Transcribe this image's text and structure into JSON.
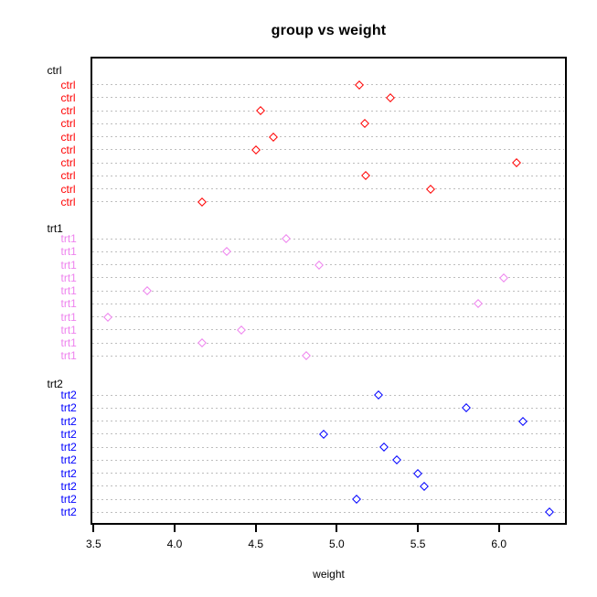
{
  "window": {
    "background": "#FFFFFF"
  },
  "chart_data": {
    "type": "scatter",
    "subtype": "dotchart",
    "title": "group vs weight",
    "xlabel": "weight",
    "ylabel": "",
    "xlim": [
      3.4812,
      6.4188
    ],
    "x_ticks": [
      {
        "value": 3.5,
        "label": "3.5"
      },
      {
        "value": 4.0,
        "label": "4.0"
      },
      {
        "value": 4.5,
        "label": "4.5"
      },
      {
        "value": 5.0,
        "label": "5.0"
      },
      {
        "value": 5.5,
        "label": "5.5"
      },
      {
        "value": 6.0,
        "label": "6.0"
      }
    ],
    "grid": "horizontal dotted line per data row",
    "grid_color": "#BEBEBE",
    "frame_color": "#000000",
    "marker": "open-diamond",
    "legend": "none",
    "groups": [
      {
        "name": "ctrl",
        "color": "#FF0000",
        "values_top_to_bottom": [
          5.14,
          5.33,
          4.53,
          5.17,
          4.61,
          4.5,
          6.11,
          5.18,
          5.58,
          4.17
        ]
      },
      {
        "name": "trt1",
        "color": "#EE82EE",
        "values_top_to_bottom": [
          4.69,
          4.32,
          4.89,
          6.03,
          3.83,
          5.87,
          3.59,
          4.41,
          4.17,
          4.81
        ]
      },
      {
        "name": "trt2",
        "color": "#0000FF",
        "values_top_to_bottom": [
          5.26,
          5.8,
          6.15,
          4.92,
          5.29,
          5.37,
          5.5,
          5.54,
          5.12,
          6.31
        ]
      }
    ]
  }
}
